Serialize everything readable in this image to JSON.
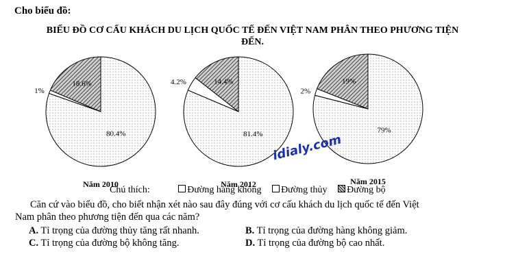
{
  "intro": "Cho biểu đồ:",
  "title_line1": "BIỂU ĐỒ CƠ CẤU KHÁCH DU LỊCH QUỐC TẾ ĐẾN VIỆT NAM PHÂN THEO PHƯƠNG TIỆN",
  "title_line2": "ĐẾN.",
  "watermark": "idialy.com",
  "legend": {
    "caption": "Chú thích:",
    "items": [
      "Đường hàng không",
      "Đường thủy",
      "Đường bộ"
    ]
  },
  "question_line1": "Căn cứ vào biểu đồ, cho biết nhận xét nào sau đây đúng với cơ cấu khách du lịch quốc tế đến Việt",
  "question_line2": "Nam phân theo phương tiện đến qua các năm?",
  "options": [
    {
      "key": "A.",
      "text": "Tỉ trọng của đường thủy tăng rất nhanh."
    },
    {
      "key": "B.",
      "text": "Tỉ trọng của đường hàng không giảm."
    },
    {
      "key": "C.",
      "text": "Tỉ trọng của đường bộ không tăng."
    },
    {
      "key": "D.",
      "text": "Tỉ trọng của đường bộ cao nhất."
    }
  ],
  "chart_data": [
    {
      "type": "pie",
      "title": "Năm 2010",
      "categories": [
        "Đường hàng không",
        "Đường thủy",
        "Đường bộ"
      ],
      "values": [
        80.4,
        1,
        18.6
      ],
      "labels": [
        "80.4%",
        "1%",
        "18.6%"
      ]
    },
    {
      "type": "pie",
      "title": "Năm 2012",
      "categories": [
        "Đường hàng không",
        "Đường thủy",
        "Đường bộ"
      ],
      "values": [
        81.4,
        4.2,
        14.4
      ],
      "labels": [
        "81.4%",
        "4.2%",
        "14.4%"
      ]
    },
    {
      "type": "pie",
      "title": "Năm 2015",
      "categories": [
        "Đường hàng không",
        "Đường thủy",
        "Đường bộ"
      ],
      "values": [
        79,
        2,
        19
      ],
      "labels": [
        "79%",
        "2%",
        "19%"
      ]
    }
  ]
}
